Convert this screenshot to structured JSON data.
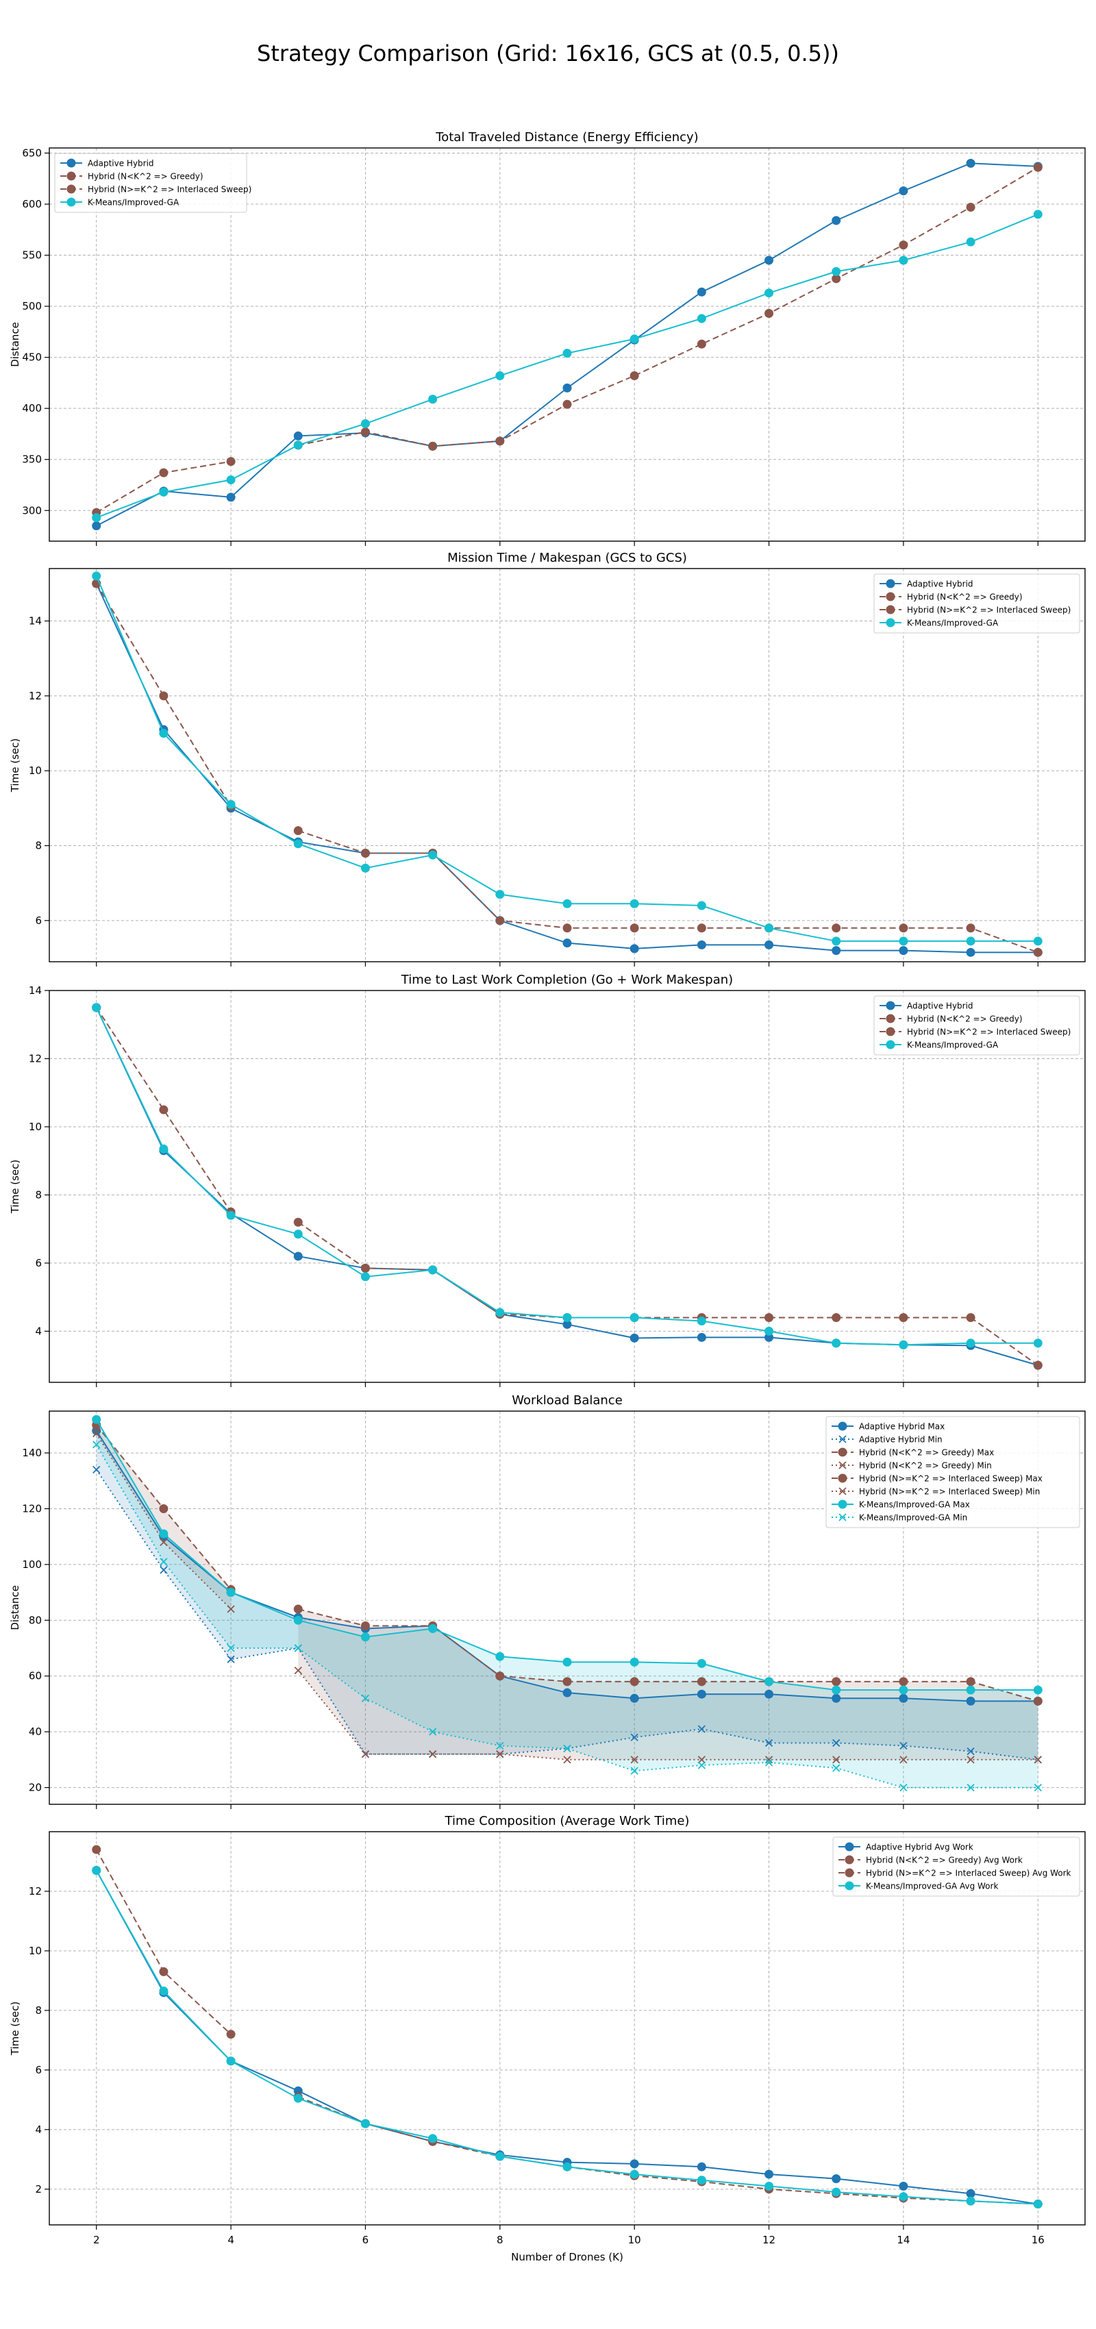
{
  "figure": {
    "title": "Strategy Comparison (Grid: 16x16, GCS at (0.5, 0.5))",
    "xlabel": "Number of Drones (K)"
  },
  "colors": {
    "adaptive": "#1f77b4",
    "hybrid": "#8c564b",
    "kmeans": "#17becf",
    "grid": "#b0b0b0",
    "axes": "#000000"
  },
  "chart_data": [
    {
      "type": "line",
      "title": "Total Traveled Distance (Energy Efficiency)",
      "xlabel": "",
      "ylabel": "Distance",
      "xlim": [
        1.3,
        16.7
      ],
      "ylim": [
        270,
        655
      ],
      "xticks": [
        2,
        4,
        6,
        8,
        10,
        12,
        14,
        16
      ],
      "yticks": [
        300,
        350,
        400,
        450,
        500,
        550,
        600,
        650
      ],
      "grid": true,
      "legend_position": "upper-left",
      "series": [
        {
          "name": "Adaptive Hybrid",
          "color": "#1f77b4",
          "linestyle": "solid",
          "marker": "circle",
          "x": [
            2,
            3,
            4,
            5,
            6,
            7,
            8,
            9,
            10,
            11,
            12,
            13,
            14,
            15,
            16
          ],
          "y": [
            285,
            319,
            313,
            373,
            376,
            363,
            368,
            420,
            467,
            514,
            545,
            584,
            613,
            640,
            637
          ]
        },
        {
          "name": "Hybrid (N<K^2 => Greedy)",
          "color": "#8c564b",
          "linestyle": "dashed",
          "marker": "circle",
          "x": [
            2,
            3,
            4
          ],
          "y": [
            298,
            337,
            348
          ]
        },
        {
          "name": "Hybrid (N>=K^2 => Interlaced Sweep)",
          "color": "#8c564b",
          "linestyle": "dashed",
          "marker": "circle",
          "x": [
            5,
            6,
            7,
            8,
            9,
            10,
            11,
            12,
            13,
            14,
            15,
            16
          ],
          "y": [
            364,
            377,
            363,
            368,
            404,
            432,
            463,
            493,
            527,
            560,
            597,
            636
          ]
        },
        {
          "name": "K-Means/Improved-GA",
          "color": "#17becf",
          "linestyle": "solid",
          "marker": "circle",
          "x": [
            2,
            3,
            4,
            5,
            6,
            7,
            8,
            9,
            10,
            11,
            12,
            13,
            14,
            15,
            16
          ],
          "y": [
            293,
            318,
            330,
            364,
            385,
            409,
            432,
            454,
            468,
            488,
            513,
            534,
            545,
            563,
            590
          ]
        }
      ]
    },
    {
      "type": "line",
      "title": "Mission Time / Makespan (GCS to GCS)",
      "xlabel": "",
      "ylabel": "Time (sec)",
      "xlim": [
        1.3,
        16.7
      ],
      "ylim": [
        4.9,
        15.4
      ],
      "xticks": [
        2,
        4,
        6,
        8,
        10,
        12,
        14,
        16
      ],
      "yticks": [
        6,
        8,
        10,
        12,
        14
      ],
      "grid": true,
      "legend_position": "upper-right",
      "series": [
        {
          "name": "Adaptive Hybrid",
          "color": "#1f77b4",
          "linestyle": "solid",
          "marker": "circle",
          "x": [
            2,
            3,
            4,
            5,
            6,
            7,
            8,
            9,
            10,
            11,
            12,
            13,
            14,
            15,
            16
          ],
          "y": [
            15.0,
            11.1,
            9.0,
            8.1,
            7.8,
            7.8,
            6.0,
            5.4,
            5.25,
            5.35,
            5.35,
            5.2,
            5.2,
            5.15,
            5.15
          ]
        },
        {
          "name": "Hybrid (N<K^2 => Greedy)",
          "color": "#8c564b",
          "linestyle": "dashed",
          "marker": "circle",
          "x": [
            2,
            3,
            4
          ],
          "y": [
            15.0,
            12.0,
            9.05
          ]
        },
        {
          "name": "Hybrid (N>=K^2 => Interlaced Sweep)",
          "color": "#8c564b",
          "linestyle": "dashed",
          "marker": "circle",
          "x": [
            5,
            6,
            7,
            8,
            9,
            10,
            11,
            12,
            13,
            14,
            15,
            16
          ],
          "y": [
            8.4,
            7.8,
            7.8,
            6.0,
            5.8,
            5.8,
            5.8,
            5.8,
            5.8,
            5.8,
            5.8,
            5.15
          ]
        },
        {
          "name": "K-Means/Improved-GA",
          "color": "#17becf",
          "linestyle": "solid",
          "marker": "circle",
          "x": [
            2,
            3,
            4,
            5,
            6,
            7,
            8,
            9,
            10,
            11,
            12,
            13,
            14,
            15,
            16
          ],
          "y": [
            15.2,
            11.0,
            9.1,
            8.05,
            7.4,
            7.75,
            6.7,
            6.45,
            6.45,
            6.4,
            5.8,
            5.45,
            5.45,
            5.45,
            5.45
          ]
        }
      ]
    },
    {
      "type": "line",
      "title": "Time to Last Work Completion (Go + Work Makespan)",
      "xlabel": "",
      "ylabel": "Time (sec)",
      "xlim": [
        1.3,
        16.7
      ],
      "ylim": [
        2.5,
        14.0
      ],
      "xticks": [
        2,
        4,
        6,
        8,
        10,
        12,
        14,
        16
      ],
      "yticks": [
        4,
        6,
        8,
        10,
        12,
        14
      ],
      "grid": true,
      "legend_position": "upper-right",
      "series": [
        {
          "name": "Adaptive Hybrid",
          "color": "#1f77b4",
          "linestyle": "solid",
          "marker": "circle",
          "x": [
            2,
            3,
            4,
            5,
            6,
            7,
            8,
            9,
            10,
            11,
            12,
            13,
            14,
            15,
            16
          ],
          "y": [
            13.5,
            9.3,
            7.45,
            6.2,
            5.85,
            5.8,
            4.5,
            4.2,
            3.8,
            3.82,
            3.82,
            3.65,
            3.6,
            3.58,
            3.0
          ]
        },
        {
          "name": "Hybrid (N<K^2 => Greedy)",
          "color": "#8c564b",
          "linestyle": "dashed",
          "marker": "circle",
          "x": [
            2,
            3,
            4
          ],
          "y": [
            13.5,
            10.5,
            7.5
          ]
        },
        {
          "name": "Hybrid (N>=K^2 => Interlaced Sweep)",
          "color": "#8c564b",
          "linestyle": "dashed",
          "marker": "circle",
          "x": [
            5,
            6,
            7,
            8,
            9,
            10,
            11,
            12,
            13,
            14,
            15,
            16
          ],
          "y": [
            7.2,
            5.85,
            5.8,
            4.5,
            4.4,
            4.4,
            4.4,
            4.4,
            4.4,
            4.4,
            4.4,
            3.0
          ]
        },
        {
          "name": "K-Means/Improved-GA",
          "color": "#17becf",
          "linestyle": "solid",
          "marker": "circle",
          "x": [
            2,
            3,
            4,
            5,
            6,
            7,
            8,
            9,
            10,
            11,
            12,
            13,
            14,
            15,
            16
          ],
          "y": [
            13.5,
            9.35,
            7.4,
            6.85,
            5.6,
            5.8,
            4.55,
            4.4,
            4.4,
            4.3,
            4.0,
            3.65,
            3.6,
            3.65,
            3.65
          ]
        }
      ]
    },
    {
      "type": "line",
      "title": "Workload Balance",
      "xlabel": "",
      "ylabel": "Distance",
      "xlim": [
        1.3,
        16.7
      ],
      "ylim": [
        14,
        155
      ],
      "xticks": [
        2,
        4,
        6,
        8,
        10,
        12,
        14,
        16
      ],
      "yticks": [
        20,
        40,
        60,
        80,
        100,
        120,
        140
      ],
      "grid": true,
      "legend_position": "upper-right",
      "series": [
        {
          "name": "Adaptive Hybrid Max",
          "color": "#1f77b4",
          "linestyle": "solid",
          "marker": "circle",
          "x": [
            2,
            3,
            4,
            5,
            6,
            7,
            8,
            9,
            10,
            11,
            12,
            13,
            14,
            15,
            16
          ],
          "y": [
            148,
            110,
            90,
            81,
            77,
            78,
            60,
            54,
            52,
            53.5,
            53.5,
            52,
            52,
            51,
            51
          ]
        },
        {
          "name": "Adaptive Hybrid Min",
          "color": "#1f77b4",
          "linestyle": "dotted",
          "marker": "x",
          "x": [
            2,
            3,
            4,
            5,
            6,
            7,
            8,
            9,
            10,
            11,
            12,
            13,
            14,
            15,
            16
          ],
          "y": [
            134,
            98,
            66,
            70,
            32,
            32,
            32,
            34,
            38,
            41,
            36,
            36,
            35,
            33,
            30
          ]
        },
        {
          "name": "Hybrid (N<K^2 => Greedy) Max",
          "color": "#8c564b",
          "linestyle": "dashed",
          "marker": "circle",
          "x": [
            2,
            3,
            4
          ],
          "y": [
            150,
            120,
            91
          ]
        },
        {
          "name": "Hybrid (N<K^2 => Greedy) Min",
          "color": "#8c564b",
          "linestyle": "dotted",
          "marker": "x",
          "x": [
            2,
            3,
            4
          ],
          "y": [
            147,
            108,
            84
          ]
        },
        {
          "name": "Hybrid (N>=K^2 => Interlaced Sweep) Max",
          "color": "#8c564b",
          "linestyle": "dashed",
          "marker": "circle",
          "x": [
            5,
            6,
            7,
            8,
            9,
            10,
            11,
            12,
            13,
            14,
            15,
            16
          ],
          "y": [
            84,
            78,
            78,
            60,
            58,
            58,
            58,
            58,
            58,
            58,
            58,
            51
          ]
        },
        {
          "name": "Hybrid (N>=K^2 => Interlaced Sweep) Min",
          "color": "#8c564b",
          "linestyle": "dotted",
          "marker": "x",
          "x": [
            5,
            6,
            7,
            8,
            9,
            10,
            11,
            12,
            13,
            14,
            15,
            16
          ],
          "y": [
            62,
            32,
            32,
            32,
            30,
            30,
            30,
            30,
            30,
            30,
            30,
            30
          ]
        },
        {
          "name": "K-Means/Improved-GA Max",
          "color": "#17becf",
          "linestyle": "solid",
          "marker": "circle",
          "x": [
            2,
            3,
            4,
            5,
            6,
            7,
            8,
            9,
            10,
            11,
            12,
            13,
            14,
            15,
            16
          ],
          "y": [
            152,
            111,
            90,
            80,
            74,
            77,
            67,
            65,
            65,
            64.5,
            58,
            55,
            55,
            55,
            55
          ]
        },
        {
          "name": "K-Means/Improved-GA Min",
          "color": "#17becf",
          "linestyle": "dotted",
          "marker": "x",
          "x": [
            2,
            3,
            4,
            5,
            6,
            7,
            8,
            9,
            10,
            11,
            12,
            13,
            14,
            15,
            16
          ],
          "y": [
            143,
            101,
            70,
            70,
            52,
            40,
            35,
            34,
            26,
            28,
            29,
            27,
            20,
            20,
            20
          ]
        }
      ],
      "bands": [
        {
          "x": [
            2,
            3,
            4,
            5,
            6,
            7,
            8,
            9,
            10,
            11,
            12,
            13,
            14,
            15,
            16
          ],
          "upper": [
            148,
            110,
            90,
            81,
            77,
            78,
            60,
            54,
            52,
            53.5,
            53.5,
            52,
            52,
            51,
            51
          ],
          "lower": [
            134,
            98,
            66,
            70,
            32,
            32,
            32,
            34,
            38,
            41,
            36,
            36,
            35,
            33,
            30
          ],
          "color": "#1f77b4"
        },
        {
          "x": [
            2,
            3,
            4
          ],
          "upper": [
            150,
            120,
            91
          ],
          "lower": [
            147,
            108,
            84
          ],
          "color": "#8c564b"
        },
        {
          "x": [
            5,
            6,
            7,
            8,
            9,
            10,
            11,
            12,
            13,
            14,
            15,
            16
          ],
          "upper": [
            84,
            78,
            78,
            60,
            58,
            58,
            58,
            58,
            58,
            58,
            58,
            51
          ],
          "lower": [
            62,
            32,
            32,
            32,
            30,
            30,
            30,
            30,
            30,
            30,
            30,
            30
          ],
          "color": "#8c564b"
        },
        {
          "x": [
            2,
            3,
            4,
            5,
            6,
            7,
            8,
            9,
            10,
            11,
            12,
            13,
            14,
            15,
            16
          ],
          "upper": [
            152,
            111,
            90,
            80,
            74,
            77,
            67,
            65,
            65,
            64.5,
            58,
            55,
            55,
            55,
            55
          ],
          "lower": [
            143,
            101,
            70,
            70,
            52,
            40,
            35,
            34,
            26,
            28,
            29,
            27,
            20,
            20,
            20
          ],
          "color": "#17becf"
        }
      ]
    },
    {
      "type": "line",
      "title": "Time Composition (Average Work Time)",
      "xlabel": "Number of Drones (K)",
      "ylabel": "Time (sec)",
      "xlim": [
        1.3,
        16.7
      ],
      "ylim": [
        0.8,
        14.0
      ],
      "xticks": [
        2,
        4,
        6,
        8,
        10,
        12,
        14,
        16
      ],
      "yticks": [
        2,
        4,
        6,
        8,
        10,
        12
      ],
      "grid": true,
      "legend_position": "upper-right",
      "series": [
        {
          "name": "Adaptive Hybrid Avg Work",
          "color": "#1f77b4",
          "linestyle": "solid",
          "marker": "circle",
          "x": [
            2,
            3,
            4,
            5,
            6,
            7,
            8,
            9,
            10,
            11,
            12,
            13,
            14,
            15,
            16
          ],
          "y": [
            12.7,
            8.6,
            6.3,
            5.3,
            4.2,
            3.6,
            3.15,
            2.9,
            2.85,
            2.75,
            2.5,
            2.35,
            2.1,
            1.85,
            1.5
          ]
        },
        {
          "name": "Hybrid (N<K^2 => Greedy) Avg Work",
          "color": "#8c564b",
          "linestyle": "dashed",
          "marker": "circle",
          "x": [
            2,
            3,
            4
          ],
          "y": [
            13.4,
            9.3,
            7.2
          ]
        },
        {
          "name": "Hybrid (N>=K^2 => Interlaced Sweep) Avg Work",
          "color": "#8c564b",
          "linestyle": "dashed",
          "marker": "circle",
          "x": [
            5,
            6,
            7,
            8,
            9,
            10,
            11,
            12,
            13,
            14,
            15,
            16
          ],
          "y": [
            5.1,
            4.2,
            3.6,
            3.1,
            2.75,
            2.45,
            2.25,
            2.0,
            1.85,
            1.7,
            1.6,
            1.5
          ]
        },
        {
          "name": "K-Means/Improved-GA Avg Work",
          "color": "#17becf",
          "linestyle": "solid",
          "marker": "circle",
          "x": [
            2,
            3,
            4,
            5,
            6,
            7,
            8,
            9,
            10,
            11,
            12,
            13,
            14,
            15,
            16
          ],
          "y": [
            12.7,
            8.65,
            6.3,
            5.05,
            4.2,
            3.7,
            3.1,
            2.75,
            2.5,
            2.3,
            2.1,
            1.9,
            1.75,
            1.6,
            1.5
          ]
        }
      ]
    }
  ]
}
